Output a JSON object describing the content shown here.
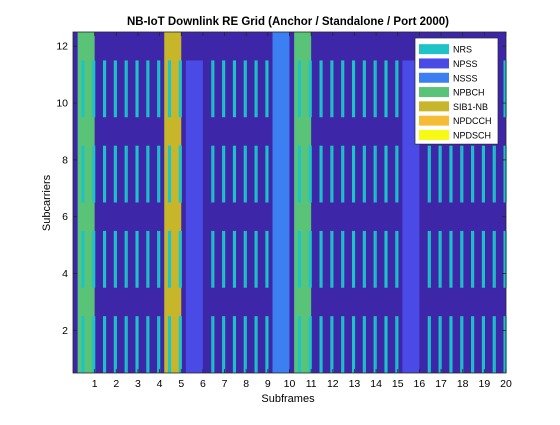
{
  "chart_data": {
    "type": "heatmap",
    "title": "NB-IoT Downlink RE Grid (Anchor / Standalone / Port 2000)",
    "xlabel": "Subframes",
    "ylabel": "Subcarriers",
    "xlim": [
      0,
      20
    ],
    "ylim": [
      0.5,
      12.5
    ],
    "xticks": [
      1,
      2,
      3,
      4,
      5,
      6,
      7,
      8,
      9,
      10,
      11,
      12,
      13,
      14,
      15,
      16,
      17,
      18,
      19,
      20
    ],
    "yticks": [
      2,
      4,
      6,
      8,
      10,
      12
    ],
    "symbols_per_subframe": 14,
    "background_color": "#3d26a8",
    "legend_position": "top-right",
    "legend": [
      {
        "label": "NRS",
        "color": "#1ec3c8"
      },
      {
        "label": "NPSS",
        "color": "#4a4ae6"
      },
      {
        "label": "NSSS",
        "color": "#3b7ff2"
      },
      {
        "label": "NPBCH",
        "color": "#59c477"
      },
      {
        "label": "SIB1-NB",
        "color": "#c8b62a"
      },
      {
        "label": "NPDCCH",
        "color": "#f5bc35"
      },
      {
        "label": "NPDSCH",
        "color": "#f8fa14"
      }
    ],
    "regions": [
      {
        "channel": "NPBCH",
        "subframe": 0,
        "symbol_start": 3,
        "symbol_end": 14,
        "subcarrier_low": 0.5,
        "subcarrier_high": 12.5
      },
      {
        "channel": "SIB1-NB",
        "subframe": 4,
        "symbol_start": 3,
        "symbol_end": 14,
        "subcarrier_low": 0.5,
        "subcarrier_high": 12.5
      },
      {
        "channel": "NPSS",
        "subframe": 5,
        "symbol_start": 3,
        "symbol_end": 14,
        "subcarrier_low": 0.5,
        "subcarrier_high": 11.5
      },
      {
        "channel": "NSSS",
        "subframe": 9,
        "symbol_start": 3,
        "symbol_end": 14,
        "subcarrier_low": 0.5,
        "subcarrier_high": 12.5
      },
      {
        "channel": "NPBCH",
        "subframe": 10,
        "symbol_start": 3,
        "symbol_end": 14,
        "subcarrier_low": 0.5,
        "subcarrier_high": 12.5
      },
      {
        "channel": "NPSS",
        "subframe": 15,
        "symbol_start": 3,
        "symbol_end": 14,
        "subcarrier_low": 0.5,
        "subcarrier_high": 11.5
      }
    ],
    "nrs": {
      "channel": "NRS",
      "symbols": [
        5,
        6,
        12,
        13
      ],
      "subcarrier_pairs": [
        [
          1,
          2
        ],
        [
          4,
          5
        ],
        [
          7,
          8
        ],
        [
          10,
          11
        ]
      ],
      "excluded_subframes": [
        5,
        9,
        15
      ]
    }
  }
}
